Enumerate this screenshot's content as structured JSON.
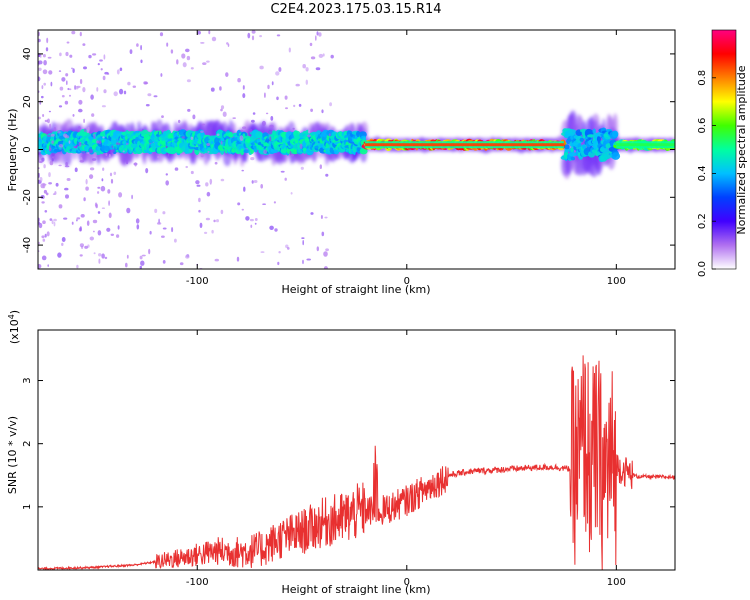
{
  "title": "C2E4.2023.175.03.15.R14",
  "chart_data": [
    {
      "type": "heatmap",
      "xlabel": "Height of straight line (km)",
      "ylabel": "Frequency (Hz)",
      "xlim": [
        -176,
        128
      ],
      "ylim": [
        -50,
        50
      ],
      "xticks": [
        -100,
        0,
        100
      ],
      "yticks": [
        -40,
        -20,
        0,
        20,
        40
      ],
      "colorbar": {
        "label": "Normalized spectral amplitude",
        "range": [
          0,
          1
        ],
        "ticks": [
          "0.0",
          "0.2",
          "0.4",
          "0.6",
          "0.8"
        ],
        "colors": [
          "#ffffff",
          "#b070f0",
          "#4000ff",
          "#0040ff",
          "#00c0ff",
          "#00ffa0",
          "#40ff00",
          "#ffff00",
          "#ff8000",
          "#ff0000",
          "#ff0080"
        ]
      },
      "features": [
        {
          "x_range": [
            -176,
            -20
          ],
          "freq_center": 3,
          "freq_spread": 8,
          "amplitude": 0.35
        },
        {
          "x_range": [
            -20,
            75
          ],
          "freq_center": 2,
          "freq_spread": 2,
          "amplitude": 0.85
        },
        {
          "x_range": [
            75,
            100
          ],
          "freq_center": 2,
          "freq_spread": 12,
          "amplitude": 0.3
        },
        {
          "x_range": [
            100,
            128
          ],
          "freq_center": 2,
          "freq_spread": 2,
          "amplitude": 0.55
        }
      ]
    },
    {
      "type": "line",
      "xlabel": "Height of straight line (km)",
      "ylabel": "SNR (10 * v/v)",
      "y_multiplier": "(x10",
      "y_exponent": "4",
      "xlim": [
        -176,
        128
      ],
      "ylim": [
        0,
        3.8
      ],
      "xticks": [
        -100,
        0,
        100
      ],
      "yticks": [
        1,
        2,
        3
      ],
      "color": "#e83030",
      "series": [
        {
          "x": [
            -176,
            -150,
            -130,
            -110,
            -90,
            -80,
            -70,
            -60,
            -50,
            -40,
            -30,
            -25,
            -20,
            -15,
            -10,
            0,
            10,
            20,
            30,
            40,
            50,
            60,
            70,
            78,
            82,
            85,
            88,
            91,
            94,
            97,
            100,
            105,
            110,
            128
          ],
          "y": [
            0.02,
            0.04,
            0.08,
            0.18,
            0.3,
            0.28,
            0.32,
            0.5,
            0.6,
            0.75,
            0.82,
            0.9,
            0.95,
            0.92,
            0.95,
            1.1,
            1.3,
            1.5,
            1.56,
            1.58,
            1.6,
            1.62,
            1.63,
            1.6,
            1.7,
            2.1,
            1.6,
            1.9,
            1.4,
            1.7,
            1.65,
            1.55,
            1.48,
            1.47
          ]
        }
      ]
    }
  ]
}
